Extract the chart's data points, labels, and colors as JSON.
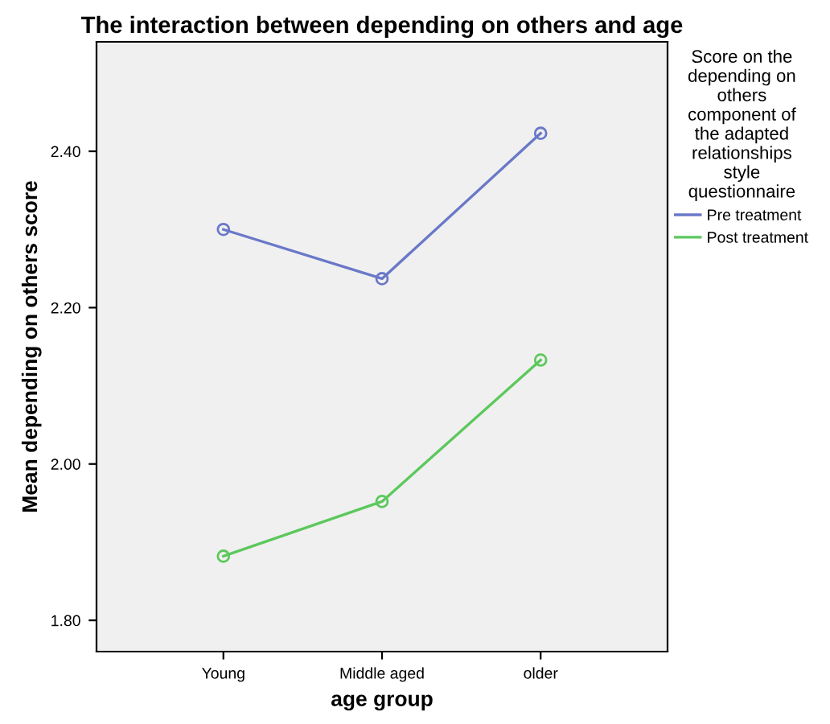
{
  "chart_data": {
    "type": "line",
    "title": "The interaction between depending on others and age",
    "xlabel": "age group",
    "ylabel": "Mean depending on others score",
    "legend_title": "Score on the\ndepending on\nothers\ncomponent of\nthe adapted\nrelationships\nstyle\nquestionnaire",
    "categories": [
      "Young",
      "Middle aged",
      "older"
    ],
    "series": [
      {
        "name": "Pre treatment",
        "color": "#6a78c8",
        "values": [
          2.3,
          2.237,
          2.423
        ]
      },
      {
        "name": "Post treatment",
        "color": "#5cc85c",
        "values": [
          1.882,
          1.952,
          2.133
        ]
      }
    ],
    "ylim": [
      1.76,
      2.54
    ],
    "yticks": [
      {
        "value": 1.8,
        "label": "1.80"
      },
      {
        "value": 2.0,
        "label": "2.00"
      },
      {
        "value": 2.2,
        "label": "2.20"
      },
      {
        "value": 2.4,
        "label": "2.40"
      }
    ],
    "marker": "circle",
    "grid": false,
    "legend": "right"
  }
}
